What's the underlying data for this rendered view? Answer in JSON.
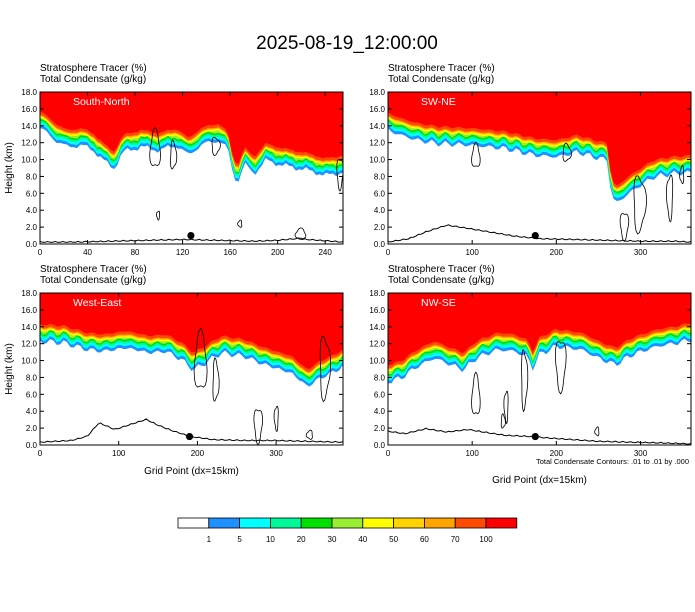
{
  "title": "2025-08-19_12:00:00",
  "xlabel": "Grid Point (dx=15km)",
  "ylabel": "Height (km)",
  "contour_note": "Total Condensate Contours: .01 to .01 by .000",
  "colorbar": {
    "levels": [
      "1",
      "5",
      "10",
      "20",
      "30",
      "40",
      "50",
      "60",
      "70",
      "100"
    ],
    "colors": [
      "#ffffff",
      "#1e90ff",
      "#00ffff",
      "#00fa9a",
      "#00e000",
      "#9aee32",
      "#ffff00",
      "#ffd200",
      "#ffa500",
      "#ff4b00",
      "#ff0000"
    ]
  },
  "chart_data": [
    {
      "type": "heatmap",
      "panel_label": "South-North",
      "subtitle_1": "Stratosphere Tracer   (%)",
      "subtitle_2": "Total Condensate   (g/kg)",
      "ylabel": "Height (km)",
      "xlabel": "",
      "xlim": [
        0,
        255
      ],
      "ylim": [
        0,
        18
      ],
      "xticks": [
        "0",
        "40",
        "80",
        "120",
        "160",
        "200",
        "240"
      ],
      "yticks": [
        "0.0",
        "2.0",
        "4.0",
        "6.0",
        "8.0",
        "10.0",
        "12.0",
        "14.0",
        "16.0",
        "18.0"
      ],
      "tracer_base_km": [
        [
          0,
          15.4
        ],
        [
          8,
          14.6
        ],
        [
          15,
          13.8
        ],
        [
          22,
          13.2
        ],
        [
          35,
          13.4
        ],
        [
          45,
          12.8
        ],
        [
          55,
          11.4
        ],
        [
          62,
          10.6
        ],
        [
          70,
          12.6
        ],
        [
          85,
          13.2
        ],
        [
          100,
          12.8
        ],
        [
          115,
          13.4
        ],
        [
          125,
          12.2
        ],
        [
          135,
          13.4
        ],
        [
          150,
          14.0
        ],
        [
          158,
          13.0
        ],
        [
          163,
          9.6
        ],
        [
          167,
          9.2
        ],
        [
          172,
          11.2
        ],
        [
          180,
          10.0
        ],
        [
          190,
          11.6
        ],
        [
          205,
          11.0
        ],
        [
          220,
          10.6
        ],
        [
          232,
          10.2
        ],
        [
          240,
          9.8
        ],
        [
          255,
          10.2
        ]
      ],
      "terrain_km": [
        [
          0,
          0.2
        ],
        [
          30,
          0.2
        ],
        [
          60,
          0.3
        ],
        [
          90,
          0.4
        ],
        [
          120,
          0.5
        ],
        [
          150,
          0.4
        ],
        [
          180,
          0.3
        ],
        [
          200,
          0.4
        ],
        [
          215,
          0.6
        ],
        [
          235,
          0.4
        ],
        [
          255,
          0.2
        ]
      ],
      "marker": {
        "x": 127,
        "y": 1.0
      }
    },
    {
      "type": "heatmap",
      "panel_label": "SW-NE",
      "subtitle_1": "Stratosphere Tracer   (%)",
      "subtitle_2": "Total Condensate   (g/kg)",
      "ylabel": "",
      "xlabel": "",
      "xlim": [
        0,
        360
      ],
      "ylim": [
        0,
        18
      ],
      "xticks": [
        "0",
        "100",
        "200",
        "300"
      ],
      "yticks": [
        "0.0",
        "2.0",
        "4.0",
        "6.0",
        "8.0",
        "10.0",
        "12.0",
        "14.0",
        "16.0",
        "18.0"
      ],
      "tracer_base_km": [
        [
          0,
          15.2
        ],
        [
          15,
          14.6
        ],
        [
          35,
          14.0
        ],
        [
          60,
          13.6
        ],
        [
          100,
          13.4
        ],
        [
          140,
          13.0
        ],
        [
          175,
          12.2
        ],
        [
          200,
          12.0
        ],
        [
          225,
          12.6
        ],
        [
          245,
          12.0
        ],
        [
          262,
          11.6
        ],
        [
          265,
          7.2
        ],
        [
          272,
          6.6
        ],
        [
          290,
          8.0
        ],
        [
          315,
          9.6
        ],
        [
          335,
          10.0
        ],
        [
          360,
          10.2
        ]
      ],
      "terrain_km": [
        [
          0,
          0.2
        ],
        [
          25,
          0.6
        ],
        [
          45,
          1.4
        ],
        [
          70,
          2.2
        ],
        [
          90,
          1.9
        ],
        [
          120,
          1.4
        ],
        [
          150,
          0.9
        ],
        [
          180,
          0.6
        ],
        [
          220,
          0.5
        ],
        [
          260,
          0.4
        ],
        [
          300,
          0.3
        ],
        [
          340,
          0.3
        ],
        [
          360,
          0.2
        ]
      ],
      "marker": {
        "x": 175,
        "y": 1.0
      }
    },
    {
      "type": "heatmap",
      "panel_label": "West-East",
      "subtitle_1": "Stratosphere Tracer   (%)",
      "subtitle_2": "Total Condensate   (g/kg)",
      "ylabel": "Height (km)",
      "xlabel": "Grid Point (dx=15km)",
      "xlim": [
        0,
        385
      ],
      "ylim": [
        0,
        18
      ],
      "xticks": [
        "0",
        "100",
        "200",
        "300"
      ],
      "yticks": [
        "0.0",
        "2.0",
        "4.0",
        "6.0",
        "8.0",
        "10.0",
        "12.0",
        "14.0",
        "16.0",
        "18.0"
      ],
      "tracer_base_km": [
        [
          0,
          14.0
        ],
        [
          30,
          13.8
        ],
        [
          60,
          13.0
        ],
        [
          80,
          12.8
        ],
        [
          110,
          13.2
        ],
        [
          140,
          12.6
        ],
        [
          160,
          12.8
        ],
        [
          180,
          11.8
        ],
        [
          195,
          10.6
        ],
        [
          210,
          11.4
        ],
        [
          230,
          12.6
        ],
        [
          260,
          12.2
        ],
        [
          280,
          11.4
        ],
        [
          300,
          10.8
        ],
        [
          320,
          10.2
        ],
        [
          340,
          8.6
        ],
        [
          355,
          9.6
        ],
        [
          370,
          10.2
        ],
        [
          385,
          11.0
        ]
      ],
      "terrain_km": [
        [
          0,
          0.3
        ],
        [
          40,
          0.5
        ],
        [
          60,
          1.0
        ],
        [
          75,
          2.6
        ],
        [
          95,
          1.8
        ],
        [
          115,
          2.4
        ],
        [
          135,
          3.0
        ],
        [
          150,
          2.3
        ],
        [
          170,
          1.6
        ],
        [
          190,
          1.0
        ],
        [
          220,
          0.6
        ],
        [
          260,
          0.5
        ],
        [
          300,
          0.5
        ],
        [
          340,
          0.4
        ],
        [
          385,
          0.3
        ]
      ],
      "marker": {
        "x": 190,
        "y": 1.0
      }
    },
    {
      "type": "heatmap",
      "panel_label": "NW-SE",
      "subtitle_1": "Stratosphere Tracer   (%)",
      "subtitle_2": "Total Condensate   (g/kg)",
      "ylabel": "",
      "xlabel": "Grid Point (dx=15km)",
      "xlim": [
        0,
        360
      ],
      "ylim": [
        0,
        18
      ],
      "xticks": [
        "0",
        "100",
        "200",
        "300"
      ],
      "yticks": [
        "0.0",
        "2.0",
        "4.0",
        "6.0",
        "8.0",
        "10.0",
        "12.0",
        "14.0",
        "16.0",
        "18.0"
      ],
      "tracer_base_km": [
        [
          0,
          9.2
        ],
        [
          15,
          9.6
        ],
        [
          35,
          11.0
        ],
        [
          55,
          12.0
        ],
        [
          75,
          11.2
        ],
        [
          90,
          10.6
        ],
        [
          105,
          12.0
        ],
        [
          130,
          13.0
        ],
        [
          150,
          12.8
        ],
        [
          165,
          12.2
        ],
        [
          172,
          10.8
        ],
        [
          180,
          12.4
        ],
        [
          200,
          13.4
        ],
        [
          230,
          13.0
        ],
        [
          250,
          12.0
        ],
        [
          270,
          11.2
        ],
        [
          290,
          12.4
        ],
        [
          320,
          13.4
        ],
        [
          345,
          13.8
        ],
        [
          360,
          14.2
        ]
      ],
      "terrain_km": [
        [
          0,
          1.6
        ],
        [
          20,
          1.3
        ],
        [
          45,
          1.9
        ],
        [
          70,
          1.5
        ],
        [
          95,
          1.8
        ],
        [
          120,
          1.4
        ],
        [
          140,
          1.1
        ],
        [
          165,
          1.0
        ],
        [
          190,
          0.8
        ],
        [
          220,
          0.6
        ],
        [
          250,
          0.4
        ],
        [
          290,
          0.3
        ],
        [
          330,
          0.2
        ],
        [
          360,
          0.1
        ]
      ],
      "marker": {
        "x": 175,
        "y": 1.0
      }
    }
  ]
}
